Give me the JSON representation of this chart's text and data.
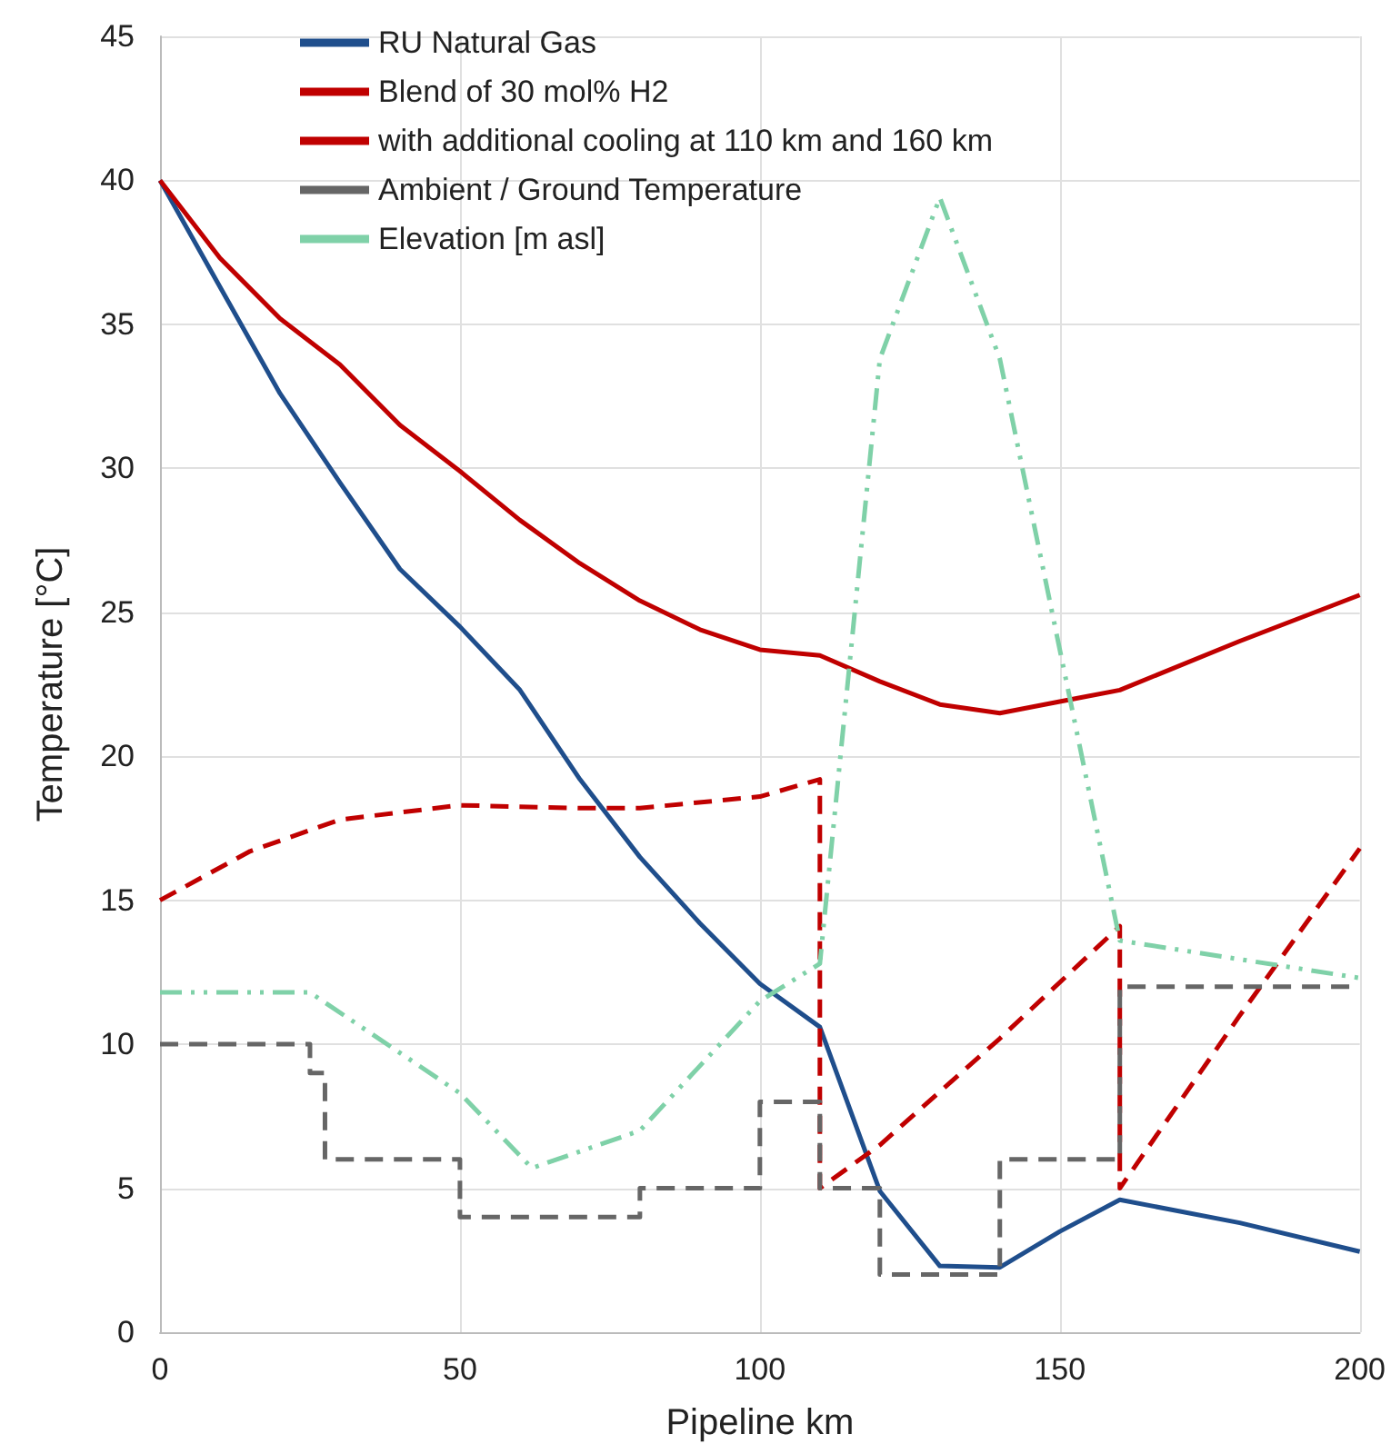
{
  "chart_data": {
    "type": "line",
    "xlabel": "Pipeline km",
    "ylabel": "Temperature [°C]",
    "xlim": [
      0,
      200
    ],
    "xticks": [
      0,
      50,
      100,
      150,
      200
    ],
    "ylim": [
      0,
      45
    ],
    "yticks": [
      0,
      5,
      10,
      15,
      20,
      25,
      30,
      35,
      40,
      45
    ],
    "grid": true,
    "legend": "top left",
    "marker": "none",
    "series": [
      {
        "name": "RU Natural Gas",
        "color": "#1f4e8c",
        "line_style": "solid",
        "x": [
          0,
          10,
          20,
          30,
          40,
          50,
          60,
          70,
          80,
          90,
          100,
          110,
          120,
          130,
          140,
          150,
          160,
          180,
          200
        ],
        "values": [
          40,
          36.3,
          32.6,
          29.5,
          26.5,
          24.5,
          22.3,
          19.2,
          16.5,
          14.2,
          12.1,
          10.6,
          4.9,
          2.3,
          2.25,
          3.5,
          4.6,
          3.8,
          2.8
        ]
      },
      {
        "name": "Blend of 30 mol% H2",
        "color": "#c00000",
        "line_style": "solid",
        "x": [
          0,
          10,
          20,
          30,
          40,
          50,
          60,
          70,
          80,
          90,
          100,
          110,
          120,
          130,
          140,
          150,
          160,
          180,
          200
        ],
        "values": [
          40,
          37.3,
          35.2,
          33.6,
          31.5,
          29.9,
          28.2,
          26.7,
          25.4,
          24.4,
          23.7,
          23.5,
          22.6,
          21.8,
          21.5,
          21.9,
          22.3,
          24,
          25.6
        ]
      },
      {
        "name": "with additional cooling at 110 km and 160 km",
        "color": "#c00000",
        "line_style": "dashed",
        "x": [
          0,
          15,
          30,
          50,
          70,
          80,
          100,
          110,
          110,
          120,
          140,
          160,
          160,
          180,
          200
        ],
        "values": [
          15,
          16.7,
          17.8,
          18.3,
          18.2,
          18.2,
          18.6,
          19.2,
          5,
          6.5,
          10.2,
          14.1,
          5,
          11,
          16.8
        ]
      },
      {
        "name": "Ambient / Ground Temperature",
        "type": "step",
        "color": "#666666",
        "line_style": "dashed",
        "x": [
          0,
          25,
          27.5,
          50,
          80,
          100,
          110,
          120,
          140,
          160,
          200
        ],
        "values": [
          10,
          9,
          6,
          4,
          5,
          8,
          5,
          2,
          6,
          12,
          12
        ]
      },
      {
        "name": "Elevation [m asl]",
        "color": "#7fd1a8",
        "line_style": "dashdot",
        "x": [
          0,
          25,
          50,
          62,
          80,
          100,
          110,
          120,
          130,
          140,
          160,
          200
        ],
        "values": [
          11.8,
          11.8,
          8.3,
          5.7,
          7,
          11.5,
          12.8,
          33.8,
          39.4,
          33.8,
          13.6,
          12.3
        ]
      }
    ]
  }
}
